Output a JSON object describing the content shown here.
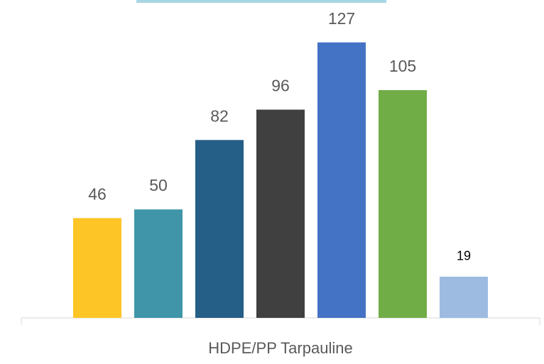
{
  "chart_data": {
    "type": "bar",
    "categories": [
      "HDPE/PP Tarpauline"
    ],
    "series": [
      {
        "color": "#fdc526",
        "values": [
          46
        ]
      },
      {
        "color": "#4096a8",
        "values": [
          50
        ]
      },
      {
        "color": "#255e87",
        "values": [
          82
        ]
      },
      {
        "color": "#404040",
        "values": [
          96
        ]
      },
      {
        "color": "#4472c4",
        "values": [
          127
        ]
      },
      {
        "color": "#70ad47",
        "values": [
          105
        ]
      },
      {
        "color": "#9dbbe0",
        "values": [
          19
        ]
      }
    ],
    "ylim": [
      0,
      140
    ]
  }
}
